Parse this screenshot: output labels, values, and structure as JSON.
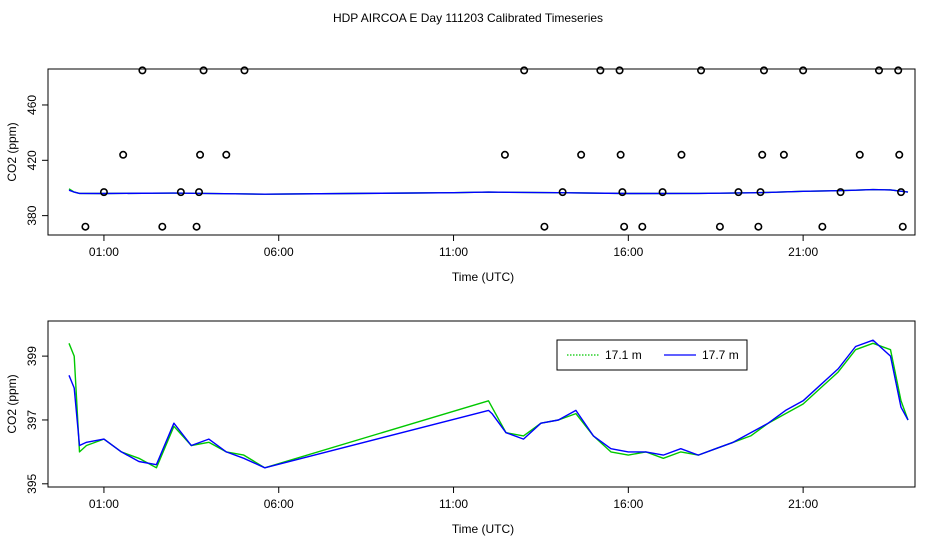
{
  "title": "HDP AIRCOA E  Day 111203  Calibrated Timeseries",
  "colors": {
    "series1": "#00c800",
    "series2": "#0000ff",
    "points": "#000000",
    "axis": "#000000"
  },
  "chart_data": [
    {
      "type": "scatter",
      "xlabel": "Time (UTC)",
      "ylabel": "CO2 (ppm)",
      "xlim": [
        -0.6,
        24.2
      ],
      "ylim": [
        366,
        486
      ],
      "x_tick_labels": [
        "01:00",
        "06:00",
        "11:00",
        "16:00",
        "21:00"
      ],
      "x_ticks": [
        1,
        6,
        11,
        16,
        21
      ],
      "y_ticks": [
        380,
        420,
        460
      ],
      "points": [
        {
          "x": 0.47,
          "y": 372
        },
        {
          "x": 1.0,
          "y": 397
        },
        {
          "x": 1.55,
          "y": 424
        },
        {
          "x": 2.1,
          "y": 485
        },
        {
          "x": 2.67,
          "y": 372
        },
        {
          "x": 3.2,
          "y": 397
        },
        {
          "x": 3.65,
          "y": 372
        },
        {
          "x": 3.72,
          "y": 397
        },
        {
          "x": 3.75,
          "y": 424
        },
        {
          "x": 3.85,
          "y": 485
        },
        {
          "x": 4.5,
          "y": 424
        },
        {
          "x": 5.02,
          "y": 485
        },
        {
          "x": 12.47,
          "y": 424
        },
        {
          "x": 13.02,
          "y": 485
        },
        {
          "x": 13.6,
          "y": 372
        },
        {
          "x": 14.12,
          "y": 397
        },
        {
          "x": 14.65,
          "y": 424
        },
        {
          "x": 15.2,
          "y": 485
        },
        {
          "x": 15.75,
          "y": 485
        },
        {
          "x": 15.78,
          "y": 424
        },
        {
          "x": 15.83,
          "y": 397
        },
        {
          "x": 15.88,
          "y": 372
        },
        {
          "x": 16.4,
          "y": 372
        },
        {
          "x": 16.98,
          "y": 397
        },
        {
          "x": 17.52,
          "y": 424
        },
        {
          "x": 18.08,
          "y": 485
        },
        {
          "x": 18.62,
          "y": 372
        },
        {
          "x": 19.15,
          "y": 397
        },
        {
          "x": 19.72,
          "y": 372
        },
        {
          "x": 19.78,
          "y": 397
        },
        {
          "x": 19.83,
          "y": 424
        },
        {
          "x": 19.88,
          "y": 485
        },
        {
          "x": 20.45,
          "y": 424
        },
        {
          "x": 21.0,
          "y": 485
        },
        {
          "x": 21.55,
          "y": 372
        },
        {
          "x": 22.07,
          "y": 397
        },
        {
          "x": 22.62,
          "y": 424
        },
        {
          "x": 23.17,
          "y": 485
        },
        {
          "x": 23.72,
          "y": 485
        },
        {
          "x": 23.75,
          "y": 424
        },
        {
          "x": 23.8,
          "y": 397
        },
        {
          "x": 23.85,
          "y": 372
        }
      ],
      "series": [
        {
          "x": [
            0.0,
            0.15,
            0.3,
            1.0,
            3.0,
            5.6,
            8.0,
            11.0,
            12.0,
            14.0,
            16.0,
            18.0,
            19.5,
            20.0,
            21.0,
            22.0,
            22.5,
            23.0,
            23.5,
            24.0
          ],
          "values": [
            399.4,
            397.0,
            396.1,
            396.0,
            396.3,
            395.5,
            396.0,
            396.6,
            397.0,
            396.6,
            396.0,
            396.1,
            396.5,
            396.8,
            397.6,
            398.0,
            398.4,
            398.8,
            398.6,
            397.0
          ]
        },
        {
          "x": [
            0.0,
            0.15,
            0.3,
            1.0,
            3.0,
            5.6,
            8.0,
            11.0,
            12.0,
            14.0,
            16.0,
            18.0,
            19.5,
            20.0,
            21.0,
            22.0,
            22.5,
            23.0,
            23.5,
            24.0
          ],
          "values": [
            398.4,
            397.0,
            396.1,
            396.0,
            396.3,
            395.5,
            396.0,
            396.6,
            397.0,
            396.6,
            396.0,
            396.1,
            396.5,
            396.8,
            397.6,
            398.0,
            398.4,
            398.8,
            398.6,
            397.0
          ]
        }
      ]
    },
    {
      "type": "line",
      "xlabel": "Time (UTC)",
      "ylabel": "CO2 (ppm)",
      "xlim": [
        -0.6,
        24.2
      ],
      "ylim": [
        394.9,
        400.1
      ],
      "x_tick_labels": [
        "01:00",
        "06:00",
        "11:00",
        "16:00",
        "21:00"
      ],
      "x_ticks": [
        1,
        6,
        11,
        16,
        21
      ],
      "y_tick_labels": [
        "395",
        "397",
        "399"
      ],
      "y_ticks": [
        395,
        397,
        399
      ],
      "legend": {
        "position": "top-right"
      },
      "series": [
        {
          "name": "17.1 m",
          "x": [
            0.0,
            0.15,
            0.3,
            0.5,
            1.0,
            1.5,
            2.0,
            2.5,
            3.0,
            3.5,
            4.0,
            4.5,
            5.0,
            5.6,
            12.0,
            12.1,
            12.5,
            13.0,
            13.5,
            14.0,
            14.5,
            15.0,
            15.5,
            16.0,
            16.5,
            17.0,
            17.5,
            18.0,
            18.5,
            19.0,
            19.5,
            20.0,
            20.5,
            21.0,
            21.5,
            22.0,
            22.5,
            23.0,
            23.5,
            23.8,
            24.0
          ],
          "values": [
            399.4,
            399.0,
            396.0,
            396.2,
            396.4,
            396.0,
            395.8,
            395.5,
            396.8,
            396.2,
            396.3,
            396.0,
            395.9,
            395.5,
            397.6,
            397.4,
            396.6,
            396.5,
            396.9,
            397.0,
            397.2,
            396.5,
            396.0,
            395.9,
            396.0,
            395.8,
            396.0,
            395.9,
            396.1,
            396.3,
            396.5,
            396.9,
            397.2,
            397.5,
            398.0,
            398.5,
            399.2,
            399.4,
            399.2,
            397.6,
            397.0
          ]
        },
        {
          "name": "17.7 m",
          "x": [
            0.0,
            0.15,
            0.3,
            0.5,
            1.0,
            1.5,
            2.0,
            2.5,
            3.0,
            3.5,
            4.0,
            4.5,
            5.0,
            5.6,
            12.0,
            12.1,
            12.5,
            13.0,
            13.5,
            14.0,
            14.5,
            15.0,
            15.5,
            16.0,
            16.5,
            17.0,
            17.5,
            18.0,
            18.5,
            19.0,
            19.5,
            20.0,
            20.5,
            21.0,
            21.5,
            22.0,
            22.5,
            23.0,
            23.5,
            23.8,
            24.0
          ],
          "values": [
            398.4,
            398.0,
            396.2,
            396.3,
            396.4,
            396.0,
            395.7,
            395.6,
            396.9,
            396.2,
            396.4,
            396.0,
            395.8,
            395.5,
            397.3,
            397.2,
            396.6,
            396.4,
            396.9,
            397.0,
            397.3,
            396.5,
            396.1,
            396.0,
            396.0,
            395.9,
            396.1,
            395.9,
            396.1,
            396.3,
            396.6,
            396.9,
            397.3,
            397.6,
            398.1,
            398.6,
            399.3,
            399.5,
            399.0,
            397.4,
            397.0
          ]
        }
      ]
    }
  ]
}
